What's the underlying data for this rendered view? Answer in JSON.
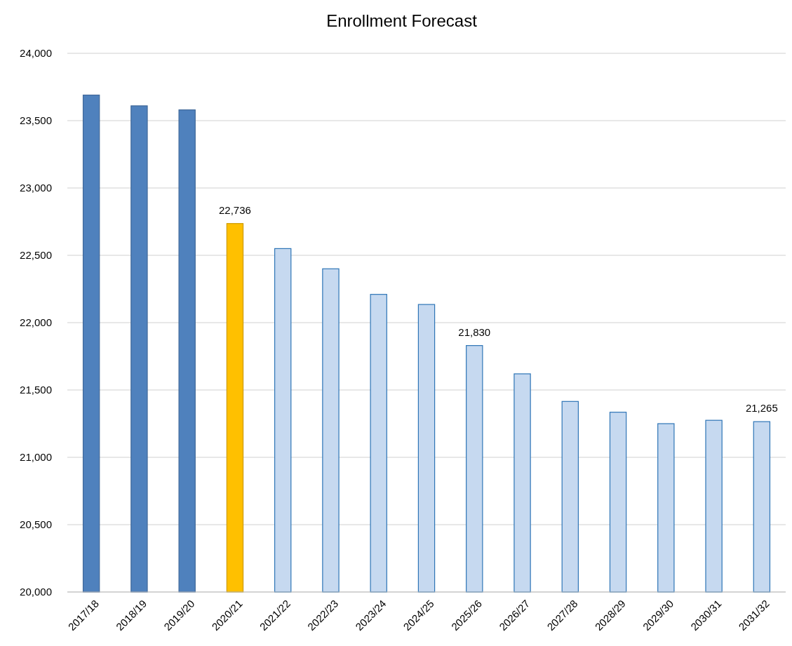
{
  "chart_data": {
    "type": "bar",
    "title": "Enrollment Forecast",
    "categories": [
      "2017/18",
      "2018/19",
      "2019/20",
      "2020/21",
      "2021/22",
      "2022/23",
      "2023/24",
      "2024/25",
      "2025/26",
      "2026/27",
      "2027/28",
      "2028/29",
      "2029/30",
      "2030/31",
      "2031/32"
    ],
    "values": [
      23690,
      23610,
      23580,
      22736,
      22550,
      22400,
      22210,
      22135,
      21830,
      21620,
      21415,
      21335,
      21250,
      21275,
      21265
    ],
    "colors": [
      "#4f81bd",
      "#4f81bd",
      "#4f81bd",
      "#ffc000",
      "#c6d9f0",
      "#c6d9f0",
      "#c6d9f0",
      "#c6d9f0",
      "#c6d9f0",
      "#c6d9f0",
      "#c6d9f0",
      "#c6d9f0",
      "#c6d9f0",
      "#c6d9f0",
      "#c6d9f0"
    ],
    "value_labels": [
      null,
      null,
      null,
      "22,736",
      null,
      null,
      null,
      null,
      "21,830",
      null,
      null,
      null,
      null,
      null,
      "21,265"
    ],
    "ylim": [
      20000,
      24000
    ],
    "yticks": [
      {
        "value": 20000,
        "label": "20,000"
      },
      {
        "value": 20500,
        "label": "20,500"
      },
      {
        "value": 21000,
        "label": "21,000"
      },
      {
        "value": 21500,
        "label": "21,500"
      },
      {
        "value": 22000,
        "label": "22,000"
      },
      {
        "value": 22500,
        "label": "22,500"
      },
      {
        "value": 23000,
        "label": "23,000"
      },
      {
        "value": 23500,
        "label": "23,500"
      },
      {
        "value": 24000,
        "label": "24,000"
      }
    ],
    "grid": "y"
  }
}
